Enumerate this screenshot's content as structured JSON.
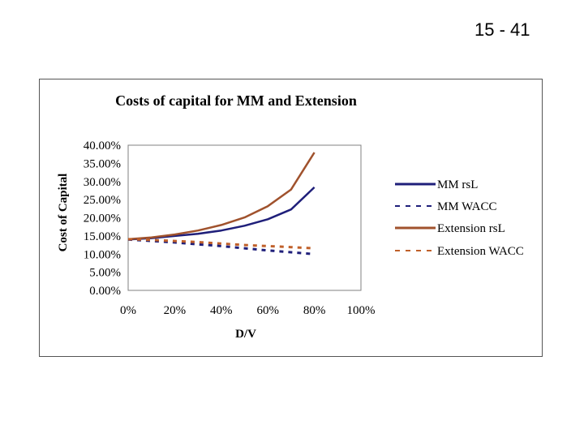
{
  "slide": {
    "number": "15 - 41"
  },
  "chart_data": {
    "type": "line",
    "title": "Costs of capital for MM  and Extension",
    "xlabel": "D/V",
    "ylabel": "Cost of Capital",
    "xlim": [
      0,
      100
    ],
    "ylim": [
      0,
      40
    ],
    "x_ticks": [
      0,
      20,
      40,
      60,
      80,
      100
    ],
    "x_tick_labels": [
      "0%",
      "20%",
      "40%",
      "60%",
      "80%",
      "100%"
    ],
    "y_ticks": [
      0,
      5,
      10,
      15,
      20,
      25,
      30,
      35,
      40
    ],
    "y_tick_labels": [
      "0.00%",
      "5.00%",
      "10.00%",
      "15.00%",
      "20.00%",
      "25.00%",
      "30.00%",
      "35.00%",
      "40.00%"
    ],
    "grid": false,
    "legend_position": "right",
    "series": [
      {
        "name": "MM rsL",
        "color": "#1f1f7a",
        "style": "solid",
        "x": [
          0,
          10,
          20,
          30,
          40,
          50,
          60,
          70,
          80
        ],
        "y": [
          14.0,
          14.4,
          15.0,
          15.6,
          16.5,
          17.8,
          19.6,
          22.3,
          28.4
        ]
      },
      {
        "name": "MM WACC",
        "color": "#1f1f7a",
        "style": "dashed",
        "x": [
          0,
          10,
          20,
          30,
          40,
          50,
          60,
          70,
          80
        ],
        "y": [
          14.0,
          13.6,
          13.2,
          12.7,
          12.2,
          11.6,
          11.0,
          10.5,
          10.0
        ]
      },
      {
        "name": "Extension rsL",
        "color": "#a0522d",
        "style": "solid",
        "x": [
          0,
          10,
          20,
          30,
          40,
          50,
          60,
          70,
          80
        ],
        "y": [
          14.1,
          14.6,
          15.4,
          16.5,
          18.0,
          20.1,
          23.2,
          27.8,
          38.0
        ]
      },
      {
        "name": "Extension WACC",
        "color": "#c0602a",
        "style": "dashed",
        "x": [
          0,
          10,
          20,
          30,
          40,
          50,
          60,
          70,
          80
        ],
        "y": [
          14.1,
          13.9,
          13.6,
          13.3,
          12.9,
          12.5,
          12.2,
          11.9,
          11.6
        ]
      }
    ]
  }
}
